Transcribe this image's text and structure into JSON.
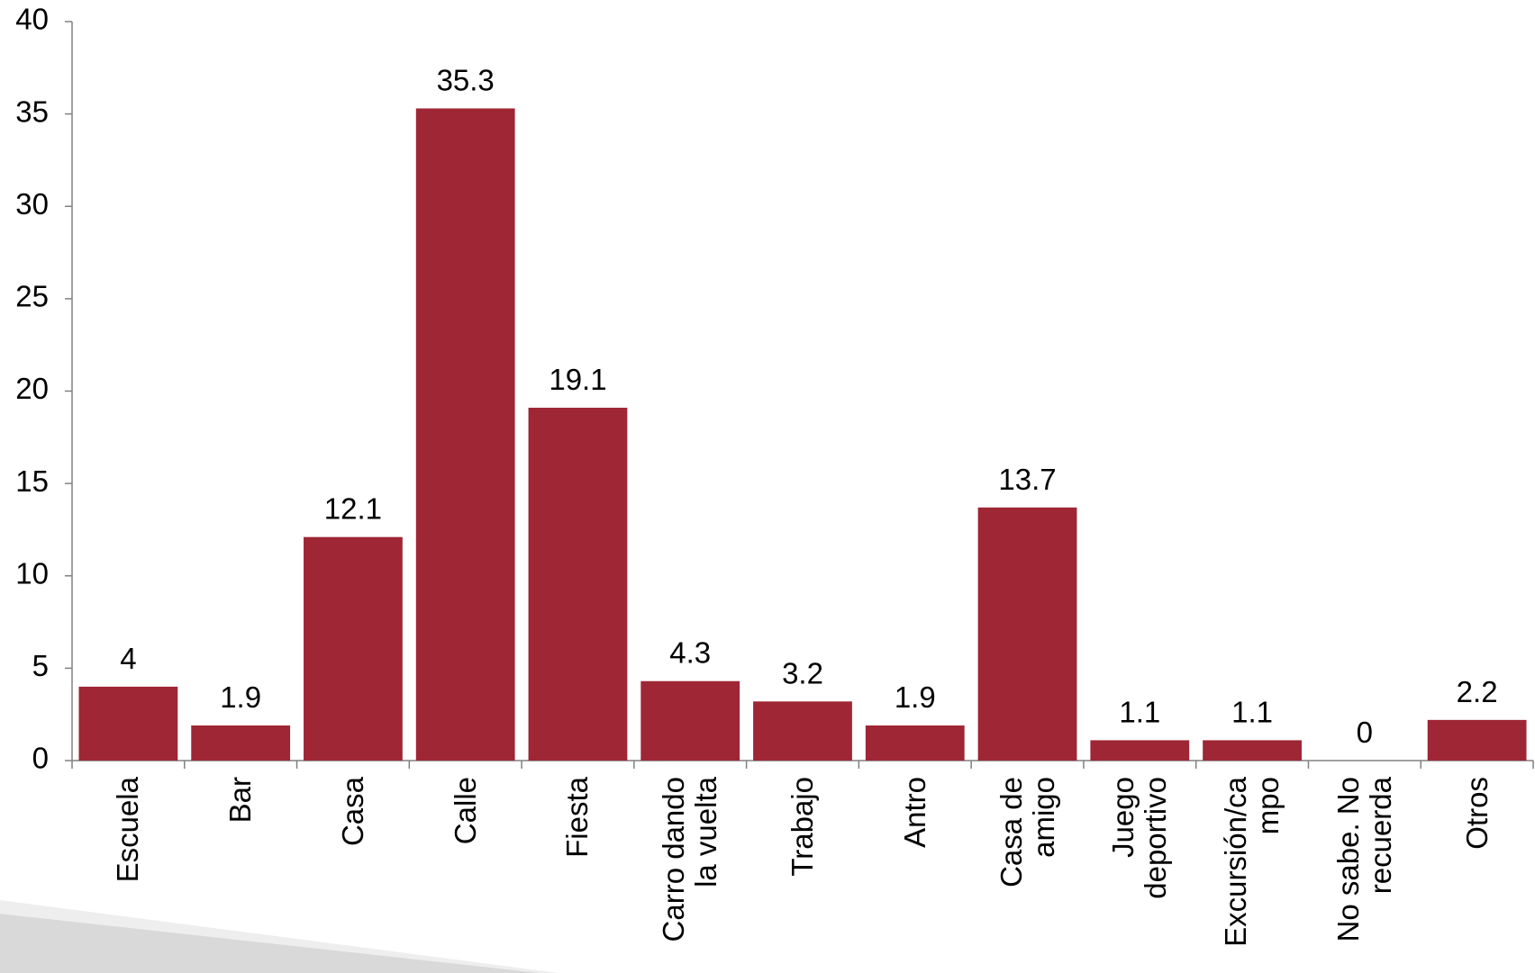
{
  "chart_data": {
    "type": "bar",
    "categories": [
      "Escuela",
      "Bar",
      "Casa",
      "Calle",
      "Fiesta",
      "Carro dando\nla vuelta",
      "Trabajo",
      "Antro",
      "Casa de\namigo",
      "Juego\ndeportivo",
      "Excursión/ca\nmpo",
      "No sabe. No\nrecuerda",
      "Otros"
    ],
    "values": [
      4,
      1.9,
      12.1,
      35.3,
      19.1,
      4.3,
      3.2,
      1.9,
      13.7,
      1.1,
      1.1,
      0,
      2.2
    ],
    "color": "#9e2635",
    "ylim": [
      0,
      40
    ],
    "yticks": [
      0,
      5,
      10,
      15,
      20,
      25,
      30,
      35,
      40
    ],
    "grid": false
  }
}
